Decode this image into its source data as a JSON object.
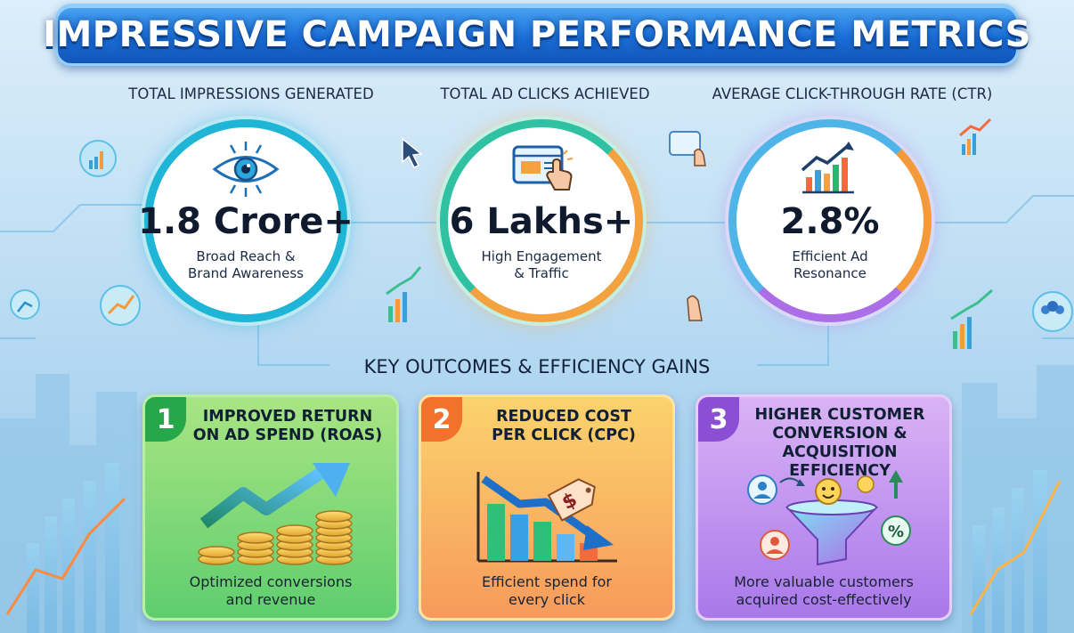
{
  "title": "IMPRESSIVE CAMPAIGN PERFORMANCE METRICS",
  "metrics": [
    {
      "heading": "TOTAL IMPRESSIONS GENERATED",
      "value": "1.8 Crore+",
      "caption": "Broad Reach &\nBrand Awareness",
      "icon": "eye-icon"
    },
    {
      "heading": "TOTAL AD CLICKS ACHIEVED",
      "value": "6 Lakhs+",
      "caption": "High Engagement\n& Traffic",
      "icon": "browser-click-icon"
    },
    {
      "heading": "AVERAGE CLICK-THROUGH RATE (CTR)",
      "value": "2.8%",
      "caption": "Efficient Ad\nResonance",
      "icon": "growth-chart-icon"
    }
  ],
  "section_heading": "KEY OUTCOMES & EFFICIENCY GAINS",
  "outcomes": [
    {
      "number": "1",
      "title": "IMPROVED RETURN\nON AD SPEND (ROAS)",
      "description": "Optimized conversions\nand revenue",
      "icon": "coins-growth-icon"
    },
    {
      "number": "2",
      "title": "REDUCED COST\nPER CLICK (CPC)",
      "description": "Efficient spend for\nevery click",
      "icon": "price-tag-decline-icon"
    },
    {
      "number": "3",
      "title": "HIGHER CUSTOMER\nCONVERSION &\nACQUISITION EFFICIENCY",
      "description": "More valuable customers\nacquired cost-effectively",
      "icon": "conversion-funnel-icon"
    }
  ],
  "colors": {
    "title_banner": "#1a6fd8",
    "card_green": "#5fce6e",
    "card_orange": "#f79a5b",
    "card_purple": "#a978ea",
    "circle_ring_teal": "#1fb5d6"
  }
}
